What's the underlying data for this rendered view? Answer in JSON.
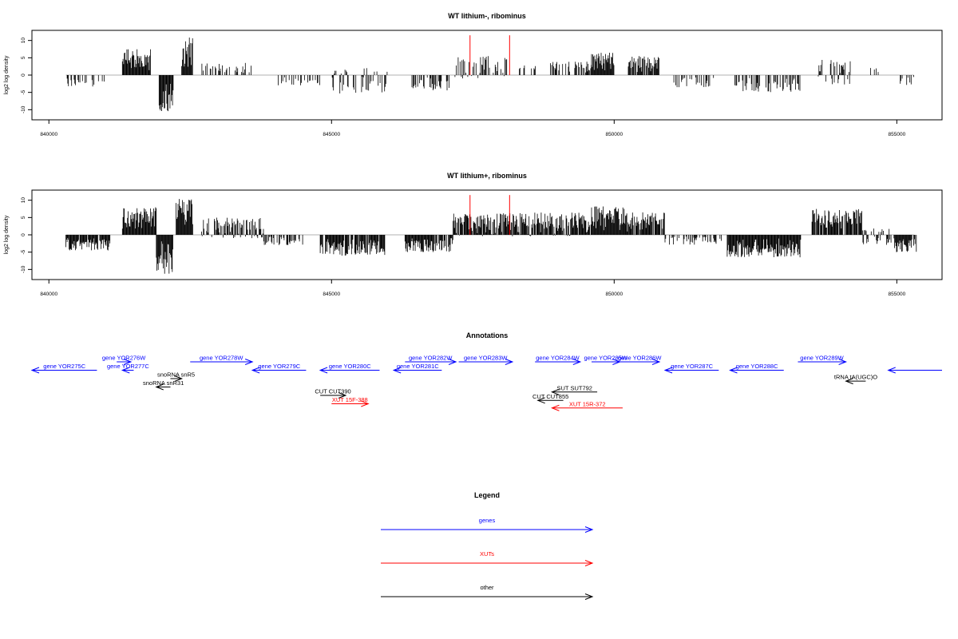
{
  "chart_data": [
    {
      "type": "bar",
      "title": "WT lithium-, ribominus",
      "ylabel": "log2 log density",
      "xlabel": "",
      "xlim": [
        839700,
        855800
      ],
      "ylim": [
        -12,
        12
      ],
      "x_ticks": [
        840000,
        845000,
        850000,
        855000
      ],
      "y_ticks": [
        10,
        5,
        0,
        -5,
        -10
      ],
      "x_tick_labels": [
        "840000",
        "845000",
        "850000",
        "855000"
      ],
      "y_tick_labels": [
        "10",
        "5",
        "0",
        "-5",
        "-10"
      ],
      "grid": false,
      "baseline": [
        840300,
        855300
      ],
      "markers": [
        {
          "x": 847450,
          "value": 11.5,
          "color": "#ff0000"
        },
        {
          "x": 848150,
          "value": 11.5,
          "color": "#ff0000"
        }
      ],
      "segments": [
        {
          "x": [
            840300,
            841000
          ],
          "min": -3.5,
          "max": 0,
          "density": 0.35
        },
        {
          "x": [
            841300,
            841800
          ],
          "min": 0,
          "max": 7.5,
          "density": 1
        },
        {
          "x": [
            841950,
            842200
          ],
          "min": -11,
          "max": 0,
          "density": 1
        },
        {
          "x": [
            842350,
            842550
          ],
          "min": 0,
          "max": 11,
          "density": 1
        },
        {
          "x": [
            842650,
            843800
          ],
          "min": 0,
          "max": 3.5,
          "density": 0.25
        },
        {
          "x": [
            843900,
            844800
          ],
          "min": -3,
          "max": 0,
          "density": 0.2
        },
        {
          "x": [
            845000,
            846000
          ],
          "min": -5.5,
          "max": 2,
          "density": 0.5
        },
        {
          "x": [
            846400,
            847100
          ],
          "min": -4.5,
          "max": 0,
          "density": 0.4
        },
        {
          "x": [
            847150,
            848100
          ],
          "min": -1,
          "max": 5.5,
          "density": 0.5
        },
        {
          "x": [
            848300,
            848650
          ],
          "min": 0,
          "max": 3,
          "density": 0.15
        },
        {
          "x": [
            848850,
            849600
          ],
          "min": 0,
          "max": 4,
          "density": 0.5
        },
        {
          "x": [
            849600,
            850000
          ],
          "min": 0,
          "max": 6.5,
          "density": 1
        },
        {
          "x": [
            850250,
            850800
          ],
          "min": 0,
          "max": 5.5,
          "density": 0.8
        },
        {
          "x": [
            851000,
            851800
          ],
          "min": -3.5,
          "max": 0,
          "density": 0.3
        },
        {
          "x": [
            852100,
            853300
          ],
          "min": -5,
          "max": 0,
          "density": 0.4
        },
        {
          "x": [
            853600,
            854200
          ],
          "min": -3,
          "max": 4.5,
          "density": 0.5
        },
        {
          "x": [
            854500,
            855000
          ],
          "min": 0,
          "max": 2.5,
          "density": 0.15
        },
        {
          "x": [
            855050,
            855300
          ],
          "min": -3,
          "max": 0,
          "density": 0.6
        }
      ]
    },
    {
      "type": "bar",
      "title": "WT lithium+, ribominus",
      "ylabel": "log2 log density",
      "xlabel": "",
      "xlim": [
        839700,
        855800
      ],
      "ylim": [
        -12,
        12
      ],
      "x_ticks": [
        840000,
        845000,
        850000,
        855000
      ],
      "y_ticks": [
        10,
        5,
        0,
        -5,
        -10
      ],
      "x_tick_labels": [
        "840000",
        "845000",
        "850000",
        "855000"
      ],
      "y_tick_labels": [
        "10",
        "5",
        "0",
        "-5",
        "-10"
      ],
      "grid": false,
      "baseline": [
        840300,
        855300
      ],
      "markers": [
        {
          "x": 847450,
          "value": 11.5,
          "color": "#ff0000"
        },
        {
          "x": 848150,
          "value": 11.5,
          "color": "#ff0000"
        }
      ],
      "segments": [
        {
          "x": [
            840300,
            841100
          ],
          "min": -4.5,
          "max": 0,
          "density": 0.9
        },
        {
          "x": [
            841300,
            841900
          ],
          "min": 0,
          "max": 8,
          "density": 1
        },
        {
          "x": [
            841900,
            842200
          ],
          "min": -11.5,
          "max": 0,
          "density": 1
        },
        {
          "x": [
            842250,
            842550
          ],
          "min": 0,
          "max": 11,
          "density": 1
        },
        {
          "x": [
            842700,
            843800
          ],
          "min": -1,
          "max": 5,
          "density": 0.8
        },
        {
          "x": [
            843800,
            844500
          ],
          "min": -3,
          "max": 0,
          "density": 0.6
        },
        {
          "x": [
            844800,
            845950
          ],
          "min": -6,
          "max": 0,
          "density": 0.9
        },
        {
          "x": [
            846300,
            847150
          ],
          "min": -5,
          "max": 0,
          "density": 0.9
        },
        {
          "x": [
            847150,
            849600
          ],
          "min": -0.5,
          "max": 6.5,
          "density": 0.9
        },
        {
          "x": [
            849600,
            850200
          ],
          "min": 0,
          "max": 8.5,
          "density": 1
        },
        {
          "x": [
            850200,
            850900
          ],
          "min": 0,
          "max": 6.5,
          "density": 0.9
        },
        {
          "x": [
            850900,
            851900
          ],
          "min": -3,
          "max": 0,
          "density": 0.5
        },
        {
          "x": [
            852000,
            853300
          ],
          "min": -6.5,
          "max": 0,
          "density": 1
        },
        {
          "x": [
            853500,
            854400
          ],
          "min": 0,
          "max": 7.5,
          "density": 0.9
        },
        {
          "x": [
            854400,
            854900
          ],
          "min": -3,
          "max": 2,
          "density": 0.5
        },
        {
          "x": [
            854950,
            855350
          ],
          "min": -5,
          "max": 0,
          "density": 0.9
        }
      ]
    }
  ],
  "annotations": {
    "title": "Annotations",
    "xlim": [
      839700,
      855800
    ],
    "items": [
      {
        "label": "gene YOR275C",
        "start": 839700,
        "end": 840850,
        "dir": "left",
        "row": 2,
        "color": "#0000ff"
      },
      {
        "label": "gene YOR276W",
        "start": 841200,
        "end": 841450,
        "dir": "right",
        "row": 1,
        "color": "#0000ff"
      },
      {
        "label": "gene YOR277C",
        "start": 841300,
        "end": 841500,
        "dir": "left",
        "row": 2,
        "color": "#0000ff"
      },
      {
        "label": "snoRNA snR5",
        "start": 842150,
        "end": 842350,
        "dir": "right",
        "row": 3,
        "color": "#000000"
      },
      {
        "label": "snoRNA snR31",
        "start": 841900,
        "end": 842150,
        "dir": "left",
        "row": 4,
        "color": "#000000"
      },
      {
        "label": "gene YOR278W",
        "start": 842500,
        "end": 843600,
        "dir": "right",
        "row": 1,
        "color": "#0000ff"
      },
      {
        "label": "gene YOR279C",
        "start": 843600,
        "end": 844550,
        "dir": "left",
        "row": 2,
        "color": "#0000ff"
      },
      {
        "label": "gene YOR280C",
        "start": 844800,
        "end": 845850,
        "dir": "left",
        "row": 2,
        "color": "#0000ff"
      },
      {
        "label": "CUT CUT390",
        "start": 844800,
        "end": 845250,
        "dir": "right",
        "row": 5,
        "color": "#000000"
      },
      {
        "label": "XUT 15F-388",
        "start": 845000,
        "end": 845650,
        "dir": "right",
        "row": 6,
        "color": "#ff0000"
      },
      {
        "label": "gene YOR281C",
        "start": 846100,
        "end": 846950,
        "dir": "left",
        "row": 2,
        "color": "#0000ff"
      },
      {
        "label": "gene YOR282W",
        "start": 846300,
        "end": 847200,
        "dir": "right",
        "row": 1,
        "color": "#0000ff"
      },
      {
        "label": "gene YOR283W",
        "start": 847250,
        "end": 848200,
        "dir": "right",
        "row": 1,
        "color": "#0000ff"
      },
      {
        "label": "gene YOR284W",
        "start": 848600,
        "end": 849400,
        "dir": "right",
        "row": 1,
        "color": "#0000ff"
      },
      {
        "label": "SUT SUT792",
        "start": 848900,
        "end": 849700,
        "dir": "left",
        "row": 4.6,
        "color": "#000000"
      },
      {
        "label": "CUT CUT855",
        "start": 848650,
        "end": 849100,
        "dir": "left",
        "row": 5.6,
        "color": "#000000"
      },
      {
        "label": "XUT 15R-372",
        "start": 848900,
        "end": 850150,
        "dir": "left",
        "row": 6.5,
        "color": "#ff0000"
      },
      {
        "label": "gene YOR285W",
        "start": 849600,
        "end": 850100,
        "dir": "right",
        "row": 1,
        "color": "#0000ff"
      },
      {
        "label": "gene YOR286W",
        "start": 850100,
        "end": 850800,
        "dir": "right",
        "row": 1,
        "color": "#0000ff"
      },
      {
        "label": "gene YOR287C",
        "start": 850900,
        "end": 851850,
        "dir": "left",
        "row": 2,
        "color": "#0000ff"
      },
      {
        "label": "gene YOR288C",
        "start": 852050,
        "end": 853000,
        "dir": "left",
        "row": 2,
        "color": "#0000ff"
      },
      {
        "label": "gene YOR289W",
        "start": 853250,
        "end": 854100,
        "dir": "right",
        "row": 1,
        "color": "#0000ff"
      },
      {
        "label": "tRNA tA(UGC)O",
        "start": 854100,
        "end": 854450,
        "dir": "left",
        "row": 3.3,
        "color": "#000000"
      },
      {
        "label": "",
        "start": 854850,
        "end": 855800,
        "dir": "left",
        "row": 2,
        "color": "#0000ff"
      }
    ]
  },
  "legend": {
    "title": "Legend",
    "items": [
      {
        "label": "genes",
        "color": "#0000ff"
      },
      {
        "label": "XUTs",
        "color": "#ff0000"
      },
      {
        "label": "other",
        "color": "#000000"
      }
    ]
  }
}
